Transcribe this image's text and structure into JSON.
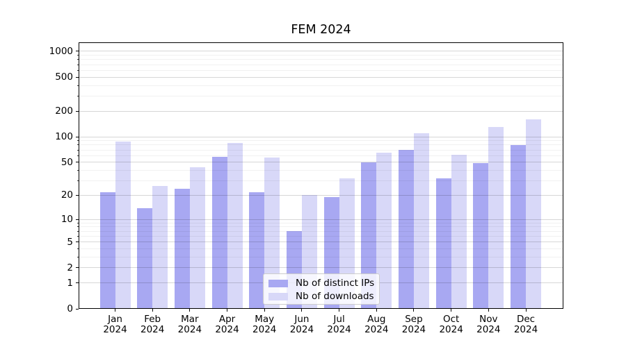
{
  "chart_data": {
    "type": "bar",
    "title": "FEM 2024",
    "categories": [
      "Jan 2024",
      "Feb 2024",
      "Mar 2024",
      "Apr 2024",
      "May 2024",
      "Jun 2024",
      "Jul 2024",
      "Aug 2024",
      "Sep 2024",
      "Oct 2024",
      "Nov 2024",
      "Dec 2024"
    ],
    "series": [
      {
        "name": "Nb of distinct IPs",
        "color": "#a8a8f2",
        "values": [
          22,
          14,
          24,
          58,
          22,
          7,
          19,
          50,
          70,
          32,
          49,
          80
        ]
      },
      {
        "name": "Nb of downloads",
        "color": "#d8d8f8",
        "values": [
          88,
          26,
          44,
          85,
          57,
          20,
          32,
          65,
          110,
          61,
          130,
          160
        ]
      }
    ],
    "xlabel": "",
    "ylabel": "",
    "y_scale": "log10(1+v)",
    "ylim": [
      0,
      1270
    ],
    "y_major_ticks": [
      0,
      1,
      2,
      5,
      10,
      20,
      50,
      100,
      200,
      500,
      1000
    ],
    "y_major_tick_labels": [
      "0",
      "1",
      "2",
      "5",
      "10",
      "20",
      "50",
      "100",
      "200",
      "500",
      "1000"
    ],
    "y_minor_ticks": [
      3,
      4,
      6,
      7,
      8,
      9,
      30,
      40,
      60,
      70,
      80,
      90,
      300,
      400,
      600,
      700,
      800,
      900
    ],
    "grid": "on",
    "grid_over_bars": true,
    "legend_position": "lower center",
    "background_color": "#ffffff",
    "spine_color": "#000000"
  },
  "legend": {
    "items": [
      {
        "label": "Nb of distinct IPs",
        "color": "#a8a8f2"
      },
      {
        "label": "Nb of downloads",
        "color": "#d8d8f8"
      }
    ]
  }
}
